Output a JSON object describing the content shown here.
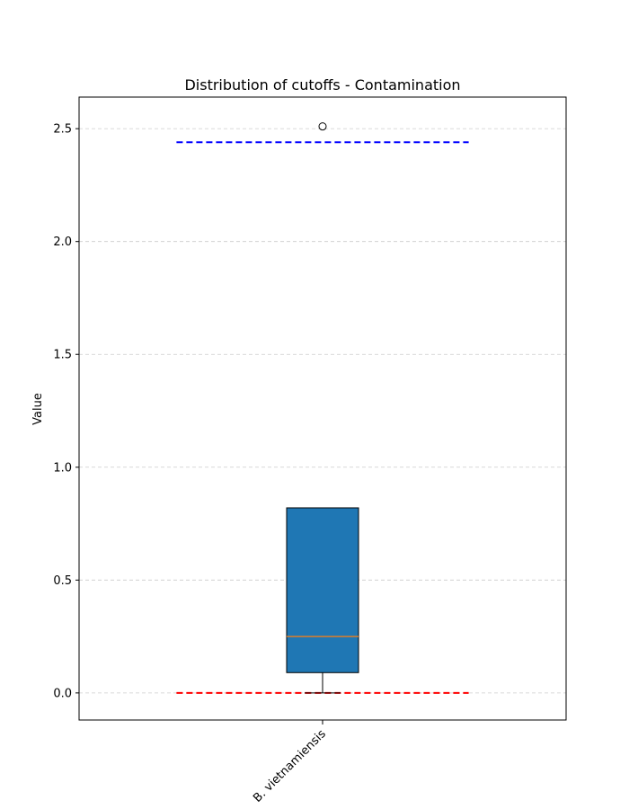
{
  "chart_data": {
    "type": "box",
    "title": "Distribution of cutoffs - Contamination",
    "xlabel": "",
    "ylabel": "Value",
    "ylim": [
      -0.12,
      2.64
    ],
    "grid": true,
    "categories": [
      "B. vietnamiensis"
    ],
    "boxes": [
      {
        "category": "B. vietnamiensis",
        "whisker_low": 0.0,
        "q1": 0.09,
        "median": 0.25,
        "q3": 0.82,
        "whisker_high": 0.82,
        "outliers": [
          2.51
        ],
        "box_color": "#1f77b4",
        "median_color": "#ff7f0e"
      }
    ],
    "yticks": [
      {
        "value": 0.0,
        "label": "0.0"
      },
      {
        "value": 0.5,
        "label": "0.5"
      },
      {
        "value": 1.0,
        "label": "1.0"
      },
      {
        "value": 1.5,
        "label": "1.5"
      },
      {
        "value": 2.0,
        "label": "2.0"
      },
      {
        "value": 2.5,
        "label": "2.5"
      }
    ],
    "reference_lines": [
      {
        "y": 2.44,
        "color": "#0000ff",
        "style": "dashed"
      },
      {
        "y": 0.0,
        "color": "#ff0000",
        "style": "dashed"
      }
    ]
  }
}
